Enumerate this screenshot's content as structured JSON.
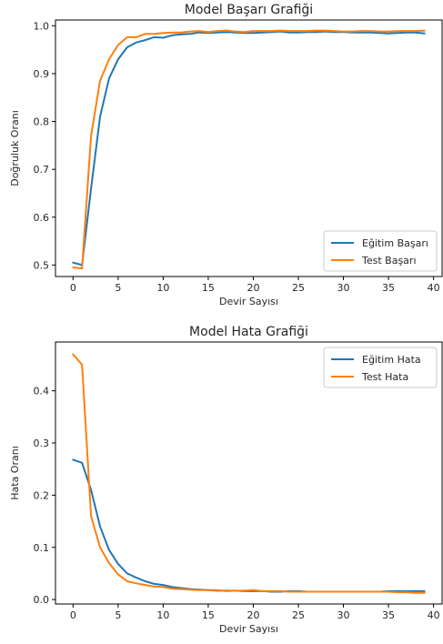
{
  "chart_data": [
    {
      "type": "line",
      "title": "Model Başarı Grafiği",
      "xlabel": "Devir Sayısı",
      "ylabel": "Doğruluk Oranı",
      "xlim": [
        -1.95,
        40.95
      ],
      "ylim": [
        0.476,
        1.012
      ],
      "xticks": [
        0,
        5,
        10,
        15,
        20,
        25,
        30,
        35,
        40
      ],
      "yticks": [
        0.5,
        0.6,
        0.7,
        0.8,
        0.9,
        1.0
      ],
      "ytick_labels": [
        "0.5",
        "0.6",
        "0.7",
        "0.8",
        "0.9",
        "1.0"
      ],
      "grid": false,
      "legend_position": "lower-right",
      "x": [
        0,
        1,
        2,
        3,
        4,
        5,
        6,
        7,
        8,
        9,
        10,
        11,
        12,
        13,
        14,
        15,
        16,
        17,
        18,
        19,
        20,
        21,
        22,
        23,
        24,
        25,
        26,
        27,
        28,
        29,
        30,
        31,
        32,
        33,
        34,
        35,
        36,
        37,
        38,
        39
      ],
      "series": [
        {
          "name": "Eğitim Başarı",
          "color": "#1f77b4",
          "values": [
            0.505,
            0.5,
            0.66,
            0.81,
            0.89,
            0.93,
            0.955,
            0.965,
            0.97,
            0.976,
            0.975,
            0.98,
            0.982,
            0.983,
            0.986,
            0.985,
            0.986,
            0.987,
            0.986,
            0.985,
            0.985,
            0.986,
            0.987,
            0.988,
            0.986,
            0.986,
            0.987,
            0.987,
            0.988,
            0.987,
            0.987,
            0.986,
            0.986,
            0.986,
            0.985,
            0.984,
            0.985,
            0.986,
            0.986,
            0.984
          ]
        },
        {
          "name": "Test Başarı",
          "color": "#ff7f0e",
          "values": [
            0.495,
            0.493,
            0.77,
            0.885,
            0.93,
            0.96,
            0.976,
            0.976,
            0.983,
            0.983,
            0.985,
            0.986,
            0.986,
            0.988,
            0.989,
            0.987,
            0.989,
            0.99,
            0.988,
            0.987,
            0.989,
            0.989,
            0.989,
            0.99,
            0.989,
            0.989,
            0.989,
            0.99,
            0.99,
            0.989,
            0.988,
            0.988,
            0.989,
            0.989,
            0.988,
            0.988,
            0.989,
            0.989,
            0.989,
            0.99
          ]
        }
      ]
    },
    {
      "type": "line",
      "title": "Model Hata Grafiği",
      "xlabel": "Devir Sayısı",
      "ylabel": "Hata Oranı",
      "xlim": [
        -1.95,
        40.95
      ],
      "ylim": [
        -0.0085,
        0.4935
      ],
      "xticks": [
        0,
        5,
        10,
        15,
        20,
        25,
        30,
        35,
        40
      ],
      "yticks": [
        0.0,
        0.1,
        0.2,
        0.3,
        0.4
      ],
      "ytick_labels": [
        "0.0",
        "0.1",
        "0.2",
        "0.3",
        "0.4"
      ],
      "grid": false,
      "legend_position": "upper-right",
      "x": [
        0,
        1,
        2,
        3,
        4,
        5,
        6,
        7,
        8,
        9,
        10,
        11,
        12,
        13,
        14,
        15,
        16,
        17,
        18,
        19,
        20,
        21,
        22,
        23,
        24,
        25,
        26,
        27,
        28,
        29,
        30,
        31,
        32,
        33,
        34,
        35,
        36,
        37,
        38,
        39
      ],
      "series": [
        {
          "name": "Eğitim Hata",
          "color": "#1f77b4",
          "values": [
            0.268,
            0.262,
            0.21,
            0.14,
            0.095,
            0.068,
            0.05,
            0.042,
            0.035,
            0.03,
            0.028,
            0.024,
            0.022,
            0.02,
            0.019,
            0.018,
            0.017,
            0.017,
            0.017,
            0.016,
            0.016,
            0.016,
            0.015,
            0.015,
            0.016,
            0.016,
            0.015,
            0.015,
            0.015,
            0.015,
            0.015,
            0.015,
            0.015,
            0.015,
            0.015,
            0.016,
            0.016,
            0.016,
            0.016,
            0.016
          ]
        },
        {
          "name": "Test Hata",
          "color": "#ff7f0e",
          "values": [
            0.47,
            0.45,
            0.16,
            0.1,
            0.07,
            0.048,
            0.035,
            0.031,
            0.028,
            0.025,
            0.024,
            0.021,
            0.02,
            0.019,
            0.018,
            0.018,
            0.018,
            0.016,
            0.017,
            0.017,
            0.018,
            0.016,
            0.016,
            0.016,
            0.015,
            0.015,
            0.015,
            0.015,
            0.015,
            0.015,
            0.015,
            0.015,
            0.015,
            0.015,
            0.015,
            0.015,
            0.014,
            0.014,
            0.013,
            0.013
          ]
        }
      ]
    }
  ]
}
